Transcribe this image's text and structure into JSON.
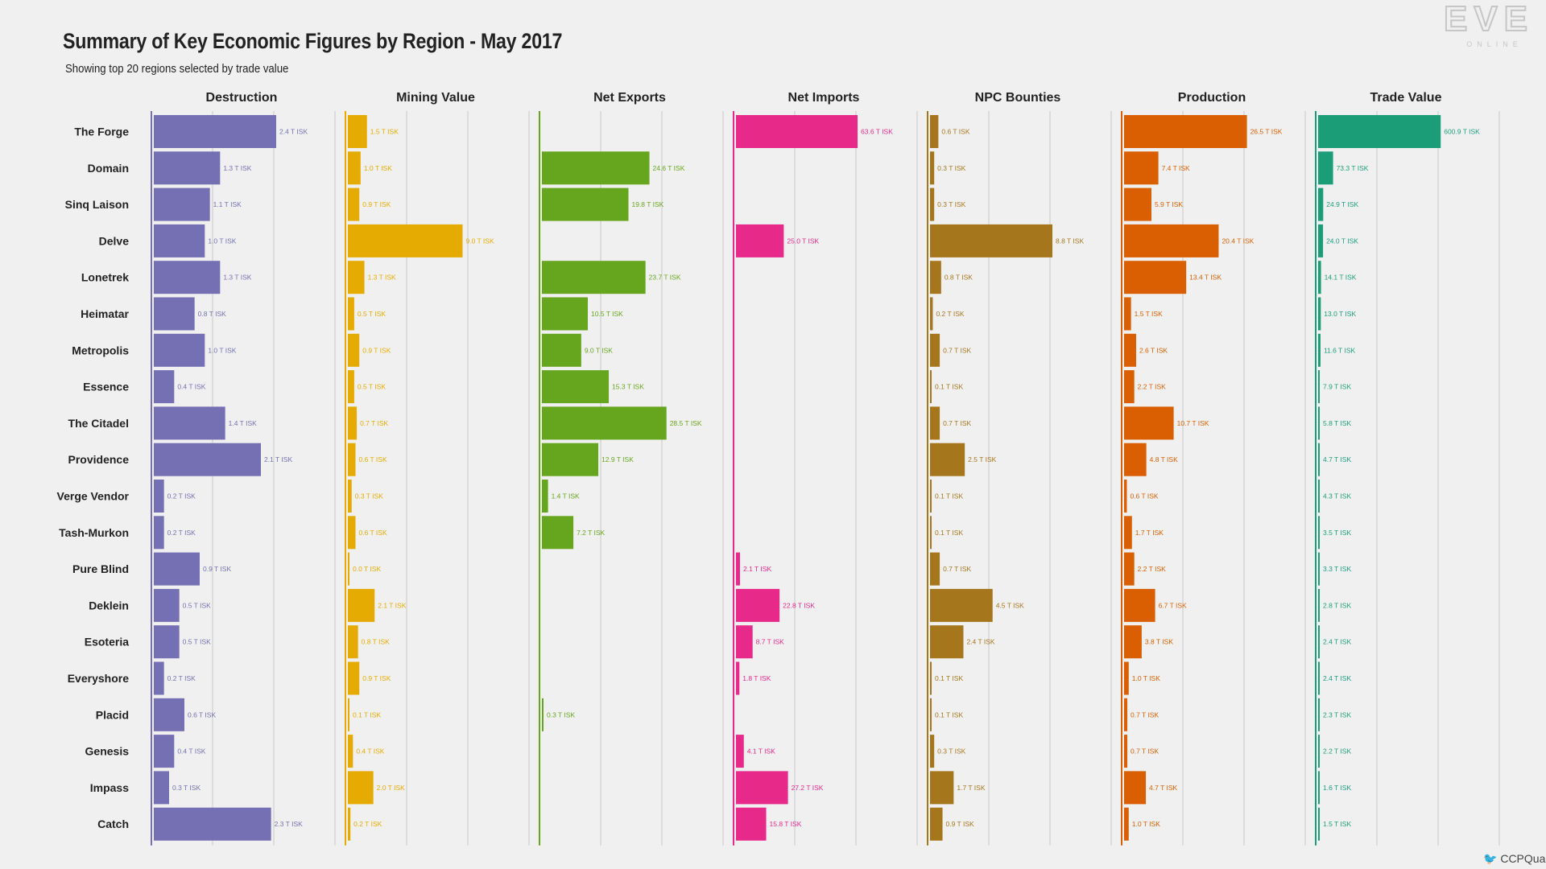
{
  "title": "Summary of Key Economic Figures by Region - May 2017",
  "subtitle": "Showing top 20 regions selected by trade value",
  "logo": {
    "text": "EVE",
    "subtext": "ONLINE"
  },
  "credit": {
    "icon": "twitter-bird-icon",
    "handle": "CCPQuant"
  },
  "chart_data": {
    "type": "bar",
    "orientation": "horizontal",
    "unit": "T ISK",
    "grid": true,
    "categories": [
      "The Forge",
      "Domain",
      "Sinq Laison",
      "Delve",
      "Lonetrek",
      "Heimatar",
      "Metropolis",
      "Essence",
      "The Citadel",
      "Providence",
      "Verge Vendor",
      "Tash-Murkon",
      "Pure Blind",
      "Deklein",
      "Esoteria",
      "Everyshore",
      "Placid",
      "Genesis",
      "Impass",
      "Catch"
    ],
    "series": [
      {
        "name": "Destruction",
        "color": "#7570b3",
        "xlim": [
          0,
          3
        ],
        "values": [
          2.4,
          1.3,
          1.1,
          1.0,
          1.3,
          0.8,
          1.0,
          0.4,
          1.4,
          2.1,
          0.2,
          0.2,
          0.9,
          0.5,
          0.5,
          0.2,
          0.6,
          0.4,
          0.3,
          2.3
        ],
        "labels": [
          "2.4 T ISK",
          "1.3 T ISK",
          "1.1 T ISK",
          "1.0 T ISK",
          "1.3 T ISK",
          "0.8 T ISK",
          "1.0 T ISK",
          "0.4 T ISK",
          "1.4 T ISK",
          "2.1 T ISK",
          "0.2 T ISK",
          "0.2 T ISK",
          "0.9 T ISK",
          "0.5 T ISK",
          "0.5 T ISK",
          "0.2 T ISK",
          "0.6 T ISK",
          "0.4 T ISK",
          "0.3 T ISK",
          "2.3 T ISK"
        ]
      },
      {
        "name": "Mining Value",
        "color": "#e6ab02",
        "xlim": [
          0,
          12
        ],
        "values": [
          1.5,
          1.0,
          0.9,
          9.0,
          1.3,
          0.5,
          0.9,
          0.5,
          0.7,
          0.6,
          0.3,
          0.6,
          0.0,
          2.1,
          0.8,
          0.9,
          0.1,
          0.4,
          2.0,
          0.2
        ],
        "labels": [
          "1.5 T ISK",
          "1.0 T ISK",
          "0.9 T ISK",
          "9.0 T ISK",
          "1.3 T ISK",
          "0.5 T ISK",
          "0.9 T ISK",
          "0.5 T ISK",
          "0.7 T ISK",
          "0.6 T ISK",
          "0.3 T ISK",
          "0.6 T ISK",
          "0.0 T ISK",
          "2.1 T ISK",
          "0.8 T ISK",
          "0.9 T ISK",
          "0.1 T ISK",
          "0.4 T ISK",
          "2.0 T ISK",
          "0.2 T ISK"
        ]
      },
      {
        "name": "Net Exports",
        "color": "#66a61e",
        "xlim": [
          0,
          35
        ],
        "values": [
          0,
          24.6,
          19.8,
          0,
          23.7,
          10.5,
          9.0,
          15.3,
          28.5,
          12.9,
          1.4,
          7.2,
          0,
          0,
          0,
          0,
          0.3,
          0,
          0,
          0
        ],
        "labels": [
          "",
          "24.6 T ISK",
          "19.8 T ISK",
          "",
          "23.7 T ISK",
          "10.5 T ISK",
          "9.0 T ISK",
          "15.3 T ISK",
          "28.5 T ISK",
          "12.9 T ISK",
          "1.4 T ISK",
          "7.2 T ISK",
          "",
          "",
          "",
          "",
          "0.3 T ISK",
          "",
          "",
          ""
        ]
      },
      {
        "name": "Net Imports",
        "color": "#e7298a",
        "xlim": [
          0,
          80
        ],
        "values": [
          63.6,
          0,
          0,
          25.0,
          0,
          0,
          0,
          0,
          0,
          0,
          0,
          0,
          2.1,
          22.8,
          8.7,
          1.8,
          0,
          4.1,
          27.2,
          15.8
        ],
        "labels": [
          "63.6 T ISK",
          "",
          "",
          "25.0 T ISK",
          "",
          "",
          "",
          "",
          "",
          "",
          "",
          "",
          "2.1 T ISK",
          "22.8 T ISK",
          "8.7 T ISK",
          "1.8 T ISK",
          "",
          "4.1 T ISK",
          "27.2 T ISK",
          "15.8 T ISK"
        ]
      },
      {
        "name": "NPC Bounties",
        "color": "#a6761d",
        "xlim": [
          0,
          11
        ],
        "values": [
          0.6,
          0.3,
          0.3,
          8.8,
          0.8,
          0.2,
          0.7,
          0.1,
          0.7,
          2.5,
          0.1,
          0.1,
          0.7,
          4.5,
          2.4,
          0.1,
          0.1,
          0.3,
          1.7,
          0.9
        ],
        "labels": [
          "0.6 T ISK",
          "0.3 T ISK",
          "0.3 T ISK",
          "8.8 T ISK",
          "0.8 T ISK",
          "0.2 T ISK",
          "0.7 T ISK",
          "0.1 T ISK",
          "0.7 T ISK",
          "2.5 T ISK",
          "0.1 T ISK",
          "0.1 T ISK",
          "0.7 T ISK",
          "4.5 T ISK",
          "2.4 T ISK",
          "0.1 T ISK",
          "0.1 T ISK",
          "0.3 T ISK",
          "1.7 T ISK",
          "0.9 T ISK"
        ]
      },
      {
        "name": "Production",
        "color": "#d95f02",
        "xlim": [
          0,
          33
        ],
        "values": [
          26.5,
          7.4,
          5.9,
          20.4,
          13.4,
          1.5,
          2.6,
          2.2,
          10.7,
          4.8,
          0.6,
          1.7,
          2.2,
          6.7,
          3.8,
          1.0,
          0.7,
          0.7,
          4.7,
          1.0
        ],
        "labels": [
          "26.5 T ISK",
          "7.4 T ISK",
          "5.9 T ISK",
          "20.4 T ISK",
          "13.4 T ISK",
          "1.5 T ISK",
          "2.6 T ISK",
          "2.2 T ISK",
          "10.7 T ISK",
          "4.8 T ISK",
          "0.6 T ISK",
          "1.7 T ISK",
          "2.2 T ISK",
          "6.7 T ISK",
          "3.8 T ISK",
          "1.0 T ISK",
          "0.7 T ISK",
          "0.7 T ISK",
          "4.7 T ISK",
          "1.0 T ISK"
        ]
      },
      {
        "name": "Trade Value",
        "color": "#1b9e77",
        "xlim": [
          0,
          750
        ],
        "values": [
          600.9,
          73.3,
          24.9,
          24.0,
          14.1,
          13.0,
          11.6,
          7.9,
          5.8,
          4.7,
          4.3,
          3.5,
          3.3,
          2.8,
          2.4,
          2.4,
          2.3,
          2.2,
          1.6,
          1.5
        ],
        "labels": [
          "600.9 T ISK",
          "73.3 T ISK",
          "24.9 T ISK",
          "24.0 T ISK",
          "14.1 T ISK",
          "13.0 T ISK",
          "11.6 T ISK",
          "7.9 T ISK",
          "5.8 T ISK",
          "4.7 T ISK",
          "4.3 T ISK",
          "3.5 T ISK",
          "3.3 T ISK",
          "2.8 T ISK",
          "2.4 T ISK",
          "2.4 T ISK",
          "2.3 T ISK",
          "2.2 T ISK",
          "1.6 T ISK",
          "1.5 T ISK"
        ]
      }
    ]
  }
}
